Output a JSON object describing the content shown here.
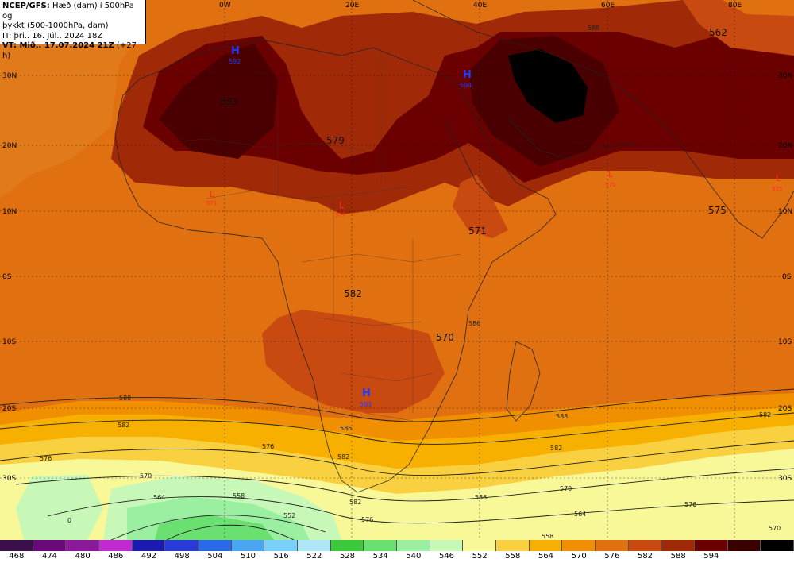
{
  "header": {
    "line1_bold": "NCEP/GFS:",
    "line1_rest": "Hæð (dam) í 500hPa og",
    "line2": "þykkt (500-1000hPa, dam)",
    "line3": "IT: þri.. 16. Júl.. 2024 18Z",
    "line4_bold": "VT: Mið.. 17.07.2024 21Z",
    "line4_rest": "(+27 h)"
  },
  "longitude_labels": [
    "0W",
    "20E",
    "40E",
    "60E",
    "80E"
  ],
  "latitude_labels": [
    "30N",
    "20N",
    "10N",
    "0S",
    "10S",
    "20S",
    "30S"
  ],
  "highs": [
    {
      "symbol": "H",
      "value": "592"
    },
    {
      "symbol": "H",
      "value": "594"
    },
    {
      "symbol": "H",
      "value": "593"
    }
  ],
  "lows": [
    {
      "symbol": "L",
      "value": "571"
    },
    {
      "symbol": "L",
      "value": "577"
    },
    {
      "symbol": "L",
      "value": "575"
    },
    {
      "symbol": "L",
      "value": "575"
    }
  ],
  "contour_values": [
    "562",
    "593",
    "579",
    "575",
    "571",
    "582",
    "570"
  ],
  "isoline_labels": [
    "588",
    "582",
    "576",
    "570",
    "564",
    "558",
    "552",
    "0",
    "586",
    "582",
    "588",
    "582",
    "576",
    "570",
    "564",
    "558",
    "586",
    "588",
    "582",
    "576",
    "570"
  ],
  "legend": {
    "values": [
      "468",
      "474",
      "480",
      "486",
      "492",
      "498",
      "504",
      "510",
      "516",
      "522",
      "528",
      "534",
      "540",
      "546",
      "552",
      "558",
      "564",
      "570",
      "576",
      "582",
      "588",
      "594"
    ],
    "colors": [
      "#3a0f4a",
      "#6a0a7a",
      "#8b1a9a",
      "#c02ad0",
      "#1a1ab0",
      "#2a3ad8",
      "#2a6ae8",
      "#4aa6f0",
      "#7ad0f8",
      "#aee8f8",
      "#3ac93a",
      "#6ae070",
      "#9af0a0",
      "#c8f8b8",
      "#f8f898",
      "#f8d040",
      "#f8b000",
      "#f09000",
      "#e07010",
      "#c84a10",
      "#a02a08",
      "#6a0000",
      "#3a0000",
      "#000000"
    ]
  }
}
